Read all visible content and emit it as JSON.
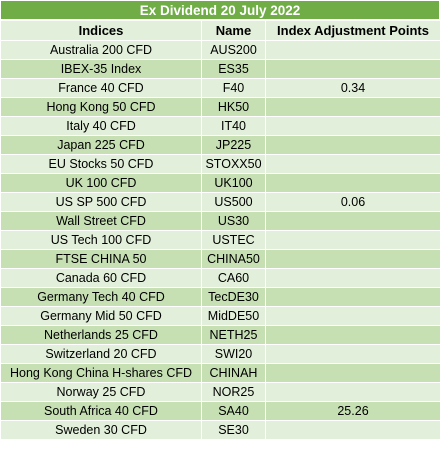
{
  "title": "Ex Dividend 20 July 2022",
  "headers": {
    "indices": "Indices",
    "name": "Name",
    "points": "Index Adjustment Points"
  },
  "rows": [
    {
      "index": "Australia 200 CFD",
      "name": "AUS200",
      "points": ""
    },
    {
      "index": "IBEX-35 Index",
      "name": "ES35",
      "points": ""
    },
    {
      "index": "France 40 CFD",
      "name": "F40",
      "points": "0.34"
    },
    {
      "index": "Hong Kong 50 CFD",
      "name": "HK50",
      "points": ""
    },
    {
      "index": "Italy 40 CFD",
      "name": "IT40",
      "points": ""
    },
    {
      "index": "Japan 225 CFD",
      "name": "JP225",
      "points": ""
    },
    {
      "index": "EU Stocks 50 CFD",
      "name": "STOXX50",
      "points": ""
    },
    {
      "index": "UK 100 CFD",
      "name": "UK100",
      "points": ""
    },
    {
      "index": "US SP 500 CFD",
      "name": "US500",
      "points": "0.06"
    },
    {
      "index": "Wall Street CFD",
      "name": "US30",
      "points": ""
    },
    {
      "index": "US Tech 100 CFD",
      "name": "USTEC",
      "points": ""
    },
    {
      "index": "FTSE CHINA 50",
      "name": "CHINA50",
      "points": ""
    },
    {
      "index": "Canada 60 CFD",
      "name": "CA60",
      "points": ""
    },
    {
      "index": "Germany Tech 40 CFD",
      "name": "TecDE30",
      "points": ""
    },
    {
      "index": "Germany Mid 50 CFD",
      "name": "MidDE50",
      "points": ""
    },
    {
      "index": "Netherlands 25 CFD",
      "name": "NETH25",
      "points": ""
    },
    {
      "index": "Switzerland 20 CFD",
      "name": "SWI20",
      "points": ""
    },
    {
      "index": "Hong Kong China H-shares CFD",
      "name": "CHINAH",
      "points": ""
    },
    {
      "index": "Norway 25 CFD",
      "name": "NOR25",
      "points": ""
    },
    {
      "index": "South Africa 40 CFD",
      "name": "SA40",
      "points": "25.26"
    },
    {
      "index": "Sweden 30 CFD",
      "name": "SE30",
      "points": ""
    }
  ],
  "colors": {
    "title_bg": "#70ad47",
    "row_light": "#e2efda",
    "row_dark": "#c6e0b4"
  }
}
